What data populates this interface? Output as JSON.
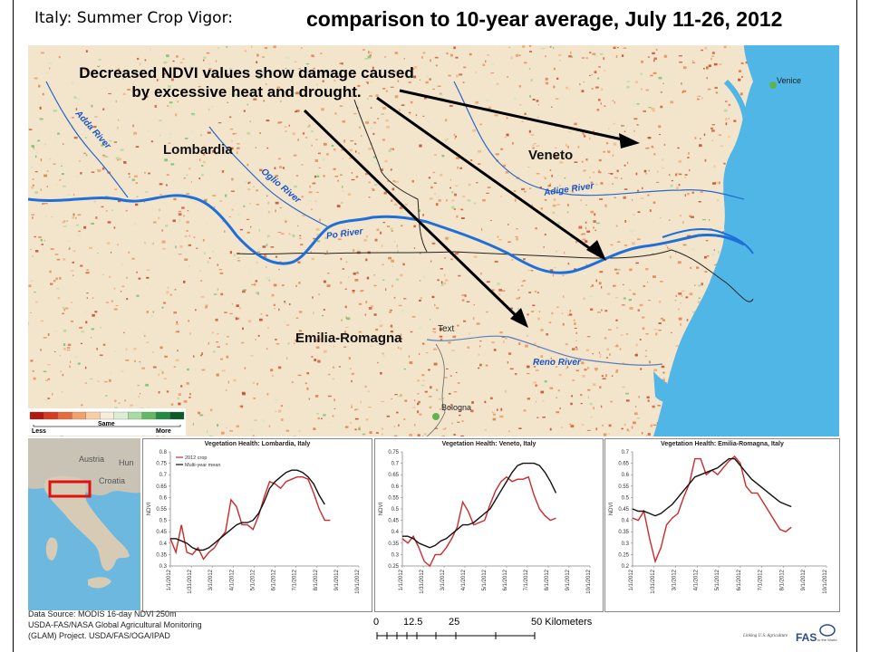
{
  "slide": {
    "title_left": "Italy: Summer Crop Vigor:",
    "title_right": "comparison to 10-year average, July 11-26, 2012"
  },
  "map": {
    "annotation_line1": "Decreased NDVI values show damage caused",
    "annotation_line2": "by excessive heat and drought.",
    "regions": [
      "Lombardia",
      "Veneto",
      "Emilia-Romagna"
    ],
    "rivers": [
      "Adda River",
      "Oglio River",
      "Po River",
      "Adige River",
      "Reno River"
    ],
    "cities": [
      "Venice",
      "Bologna"
    ],
    "misc_label": "Text"
  },
  "legend": {
    "less": "Less",
    "same": "Same",
    "more": "More",
    "colors": [
      "#b3160e",
      "#d73a1f",
      "#e66b3d",
      "#f0a26a",
      "#f6cfa3",
      "#f7ecd9",
      "#dbeed3",
      "#a8dca0",
      "#62b865",
      "#238b3f",
      "#0b5b26"
    ]
  },
  "inset_map": {
    "labels": [
      "Austria",
      "Hun",
      "Croatia"
    ]
  },
  "chart_data": [
    {
      "type": "line",
      "title": "Vegetation Health: Lombardia, Italy",
      "ylabel": "NDVI",
      "ylim": [
        0.3,
        0.8
      ],
      "yticks": [
        0.3,
        0.35,
        0.4,
        0.45,
        0.5,
        0.55,
        0.6,
        0.65,
        0.7,
        0.75,
        0.8
      ],
      "x_ticks": [
        "1/1/2012",
        "1/31/2012",
        "3/1/2012",
        "4/1/2012",
        "5/1/2012",
        "6/1/2012",
        "7/1/2012",
        "8/1/2012",
        "9/1/2012",
        "10/1/2012"
      ],
      "legend": [
        "2012 crop",
        "Multi-year mean"
      ],
      "series": [
        {
          "name": "2012 crop",
          "color": "#cc2a2a",
          "x": [
            0,
            8,
            16,
            24,
            32,
            40,
            48,
            56,
            64,
            72,
            80,
            88,
            96,
            104,
            112,
            120,
            128,
            136,
            144,
            152,
            160,
            168,
            176,
            184,
            192,
            200,
            208,
            216,
            224,
            232,
            240,
            248
          ],
          "y": [
            0.42,
            0.36,
            0.48,
            0.36,
            0.35,
            0.38,
            0.33,
            0.36,
            0.38,
            0.42,
            0.45,
            0.59,
            0.56,
            0.48,
            0.48,
            0.46,
            0.52,
            0.6,
            0.67,
            0.66,
            0.64,
            0.67,
            0.68,
            0.69,
            0.69,
            0.68,
            0.62,
            0.55,
            0.5,
            0.5,
            null,
            null
          ]
        },
        {
          "name": "Multi-year mean",
          "color": "#111111",
          "x": [
            0,
            8,
            16,
            24,
            32,
            40,
            48,
            56,
            64,
            72,
            80,
            88,
            96,
            104,
            112,
            120,
            128,
            136,
            144,
            152,
            160,
            168,
            176,
            184,
            192,
            200,
            208,
            216,
            224,
            232,
            240,
            248
          ],
          "y": [
            0.42,
            0.42,
            0.41,
            0.4,
            0.38,
            0.37,
            0.37,
            0.38,
            0.4,
            0.42,
            0.44,
            0.46,
            0.48,
            0.49,
            0.49,
            0.5,
            0.53,
            0.58,
            0.64,
            0.67,
            0.69,
            0.71,
            0.72,
            0.72,
            0.71,
            0.69,
            0.66,
            0.61,
            0.57,
            null,
            null,
            null
          ]
        }
      ]
    },
    {
      "type": "line",
      "title": "Vegetation Health: Veneto, Italy",
      "ylabel": "NDVI",
      "ylim": [
        0.25,
        0.75
      ],
      "yticks": [
        0.25,
        0.3,
        0.35,
        0.4,
        0.45,
        0.5,
        0.55,
        0.6,
        0.65,
        0.7,
        0.75
      ],
      "x_ticks": [
        "1/1/2012",
        "1/31/2012",
        "3/1/2012",
        "4/1/2012",
        "5/1/2012",
        "6/1/2012",
        "7/1/2012",
        "8/1/2012",
        "9/1/2012",
        "10/1/2012"
      ],
      "series": [
        {
          "name": "2012 crop",
          "color": "#cc2a2a",
          "x": [
            0,
            8,
            16,
            24,
            32,
            40,
            48,
            56,
            64,
            72,
            80,
            88,
            96,
            104,
            112,
            120,
            128,
            136,
            144,
            152,
            160,
            168,
            176,
            184,
            192,
            200,
            208,
            216,
            224,
            232
          ],
          "y": [
            0.37,
            0.35,
            0.38,
            0.33,
            0.27,
            0.25,
            0.3,
            0.3,
            0.33,
            0.37,
            0.42,
            0.53,
            0.49,
            0.43,
            0.44,
            0.45,
            0.52,
            0.58,
            0.62,
            0.64,
            0.62,
            0.63,
            0.63,
            0.64,
            0.56,
            0.5,
            0.47,
            0.45,
            0.46,
            null
          ]
        },
        {
          "name": "Multi-year mean",
          "color": "#111111",
          "x": [
            0,
            8,
            16,
            24,
            32,
            40,
            48,
            56,
            64,
            72,
            80,
            88,
            96,
            104,
            112,
            120,
            128,
            136,
            144,
            152,
            160,
            168,
            176,
            184,
            192,
            200,
            208,
            216,
            224,
            232
          ],
          "y": [
            0.38,
            0.38,
            0.37,
            0.35,
            0.34,
            0.33,
            0.34,
            0.36,
            0.37,
            0.39,
            0.41,
            0.43,
            0.43,
            0.44,
            0.46,
            0.48,
            0.5,
            0.54,
            0.58,
            0.62,
            0.66,
            0.69,
            0.7,
            0.7,
            0.7,
            0.69,
            0.66,
            0.62,
            0.57,
            null
          ]
        }
      ]
    },
    {
      "type": "line",
      "title": "Vegetation Health: Emilia-Romagna, Italy",
      "ylabel": "NDVI",
      "ylim": [
        0.2,
        0.7
      ],
      "yticks": [
        0.2,
        0.25,
        0.3,
        0.35,
        0.4,
        0.45,
        0.5,
        0.55,
        0.6,
        0.65,
        0.7
      ],
      "x_ticks": [
        "1/1/2012",
        "1/31/2012",
        "3/1/2012",
        "4/1/2012",
        "5/1/2012",
        "6/1/2012",
        "7/1/2012",
        "8/1/2012",
        "9/1/2012",
        "10/1/2012"
      ],
      "series": [
        {
          "name": "2012 crop",
          "color": "#cc2a2a",
          "x": [
            0,
            8,
            16,
            24,
            32,
            40,
            48,
            56,
            64,
            72,
            80,
            88,
            96,
            104,
            112,
            120,
            128,
            136,
            144,
            152,
            160,
            168,
            176,
            184,
            192,
            200,
            208,
            216,
            224,
            232
          ],
          "y": [
            0.41,
            0.4,
            0.44,
            0.32,
            0.22,
            0.28,
            0.38,
            0.41,
            0.43,
            0.5,
            0.56,
            0.67,
            0.67,
            0.6,
            0.62,
            0.6,
            0.63,
            0.66,
            0.68,
            0.65,
            0.55,
            0.52,
            0.52,
            0.48,
            0.44,
            0.4,
            0.36,
            0.35,
            0.37,
            null
          ]
        },
        {
          "name": "Multi-year mean",
          "color": "#111111",
          "x": [
            0,
            8,
            16,
            24,
            32,
            40,
            48,
            56,
            64,
            72,
            80,
            88,
            96,
            104,
            112,
            120,
            128,
            136,
            144,
            152,
            160,
            168,
            176,
            184,
            192,
            200,
            208,
            216,
            224,
            232
          ],
          "y": [
            0.45,
            0.44,
            0.44,
            0.43,
            0.42,
            0.43,
            0.45,
            0.47,
            0.5,
            0.53,
            0.56,
            0.59,
            0.6,
            0.61,
            0.62,
            0.63,
            0.65,
            0.67,
            0.67,
            0.64,
            0.61,
            0.58,
            0.56,
            0.54,
            0.52,
            0.5,
            0.48,
            0.47,
            0.46,
            null
          ]
        }
      ]
    }
  ],
  "footer": {
    "line1": "Data Source: MODIS 16-day NDVI 250m",
    "line2": "USDA-FAS/NASA Global Agricultural Monitoring",
    "line3": "(GLAM) Project. USDA/FAS/OGA/IPAD",
    "scale_ticks": [
      "0",
      "12.5",
      "25",
      "50 Kilometers"
    ],
    "logo_line1": "Linking U.S. Agriculture",
    "logo_line2": "FAS",
    "logo_line3": "to the World"
  }
}
